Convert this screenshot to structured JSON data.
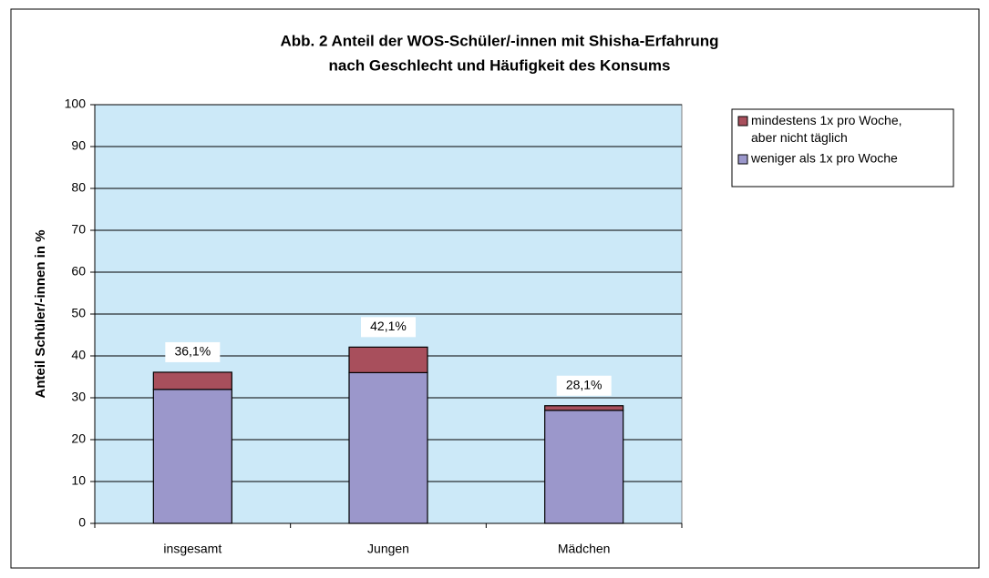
{
  "chart_data": {
    "type": "stacked_bar",
    "title": "Abb. 2  Anteil der WOS-Schüler/-innen mit Shisha-Erfahrung",
    "subtitle": "nach Geschlecht und Häufigkeit des Konsums",
    "y_label": "Anteil Schüler/-innen in %",
    "categories": [
      "insgesamt",
      "Jungen",
      "Mädchen"
    ],
    "series": [
      {
        "name": "weniger als 1x pro Woche",
        "color": "#9b97cb",
        "values": [
          32,
          36,
          27
        ]
      },
      {
        "name": "mindestens 1x pro Woche, aber nicht täglich",
        "color": "#a84f5c",
        "values": [
          4.1,
          6.1,
          1.1
        ]
      }
    ],
    "annotations": [
      {
        "text": "36,1%",
        "value": 36.1
      },
      {
        "text": "42,1%",
        "value": 42.1
      },
      {
        "text": "28,1%",
        "value": 28.1
      }
    ],
    "ylim": [
      0,
      100
    ],
    "yticks": [
      0,
      10,
      20,
      30,
      40,
      50,
      60,
      70,
      80,
      90,
      100
    ],
    "grid": true,
    "legend": "right",
    "plot_background": "#cce9f8"
  }
}
